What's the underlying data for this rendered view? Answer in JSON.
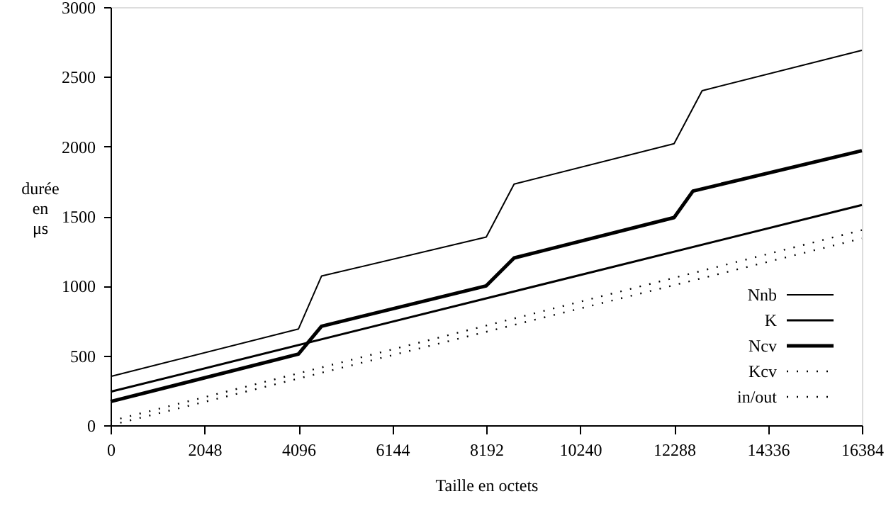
{
  "chart_data": {
    "type": "line",
    "xlabel": "Taille en octets",
    "ylabel": "durée\nen\nμs",
    "xlim": [
      0,
      16384
    ],
    "xticks": [
      0,
      2048,
      4096,
      6144,
      8192,
      10240,
      12288,
      14336,
      16384
    ],
    "ylim": [
      0,
      3000
    ],
    "yticks": [
      0,
      500,
      1000,
      1500,
      2000,
      2500,
      3000
    ],
    "grid": false,
    "legend": "bottom right",
    "marker": "none",
    "series": [
      {
        "name": "Nnb",
        "color": "#000000",
        "line_style": "solid",
        "x": [
          0,
          4096,
          4600,
          8192,
          8800,
          12288,
          12900,
          16384
        ],
        "values": [
          350,
          690,
          1070,
          1350,
          1730,
          2020,
          2400,
          2690
        ]
      },
      {
        "name": "K",
        "color": "#000000",
        "line_style": "solid",
        "x": [
          0,
          16384
        ],
        "values": [
          240,
          1580
        ]
      },
      {
        "name": "Ncv",
        "color": "#000000",
        "line_style": "solid",
        "x": [
          0,
          4096,
          4600,
          8192,
          8800,
          12288,
          12700,
          16384
        ],
        "values": [
          170,
          510,
          710,
          1000,
          1200,
          1490,
          1680,
          1970
        ]
      },
      {
        "name": "Kcv",
        "color": "#000000",
        "line_style": "dotted",
        "x": [
          0,
          16384
        ],
        "values": [
          30,
          1400
        ]
      },
      {
        "name": "in/out",
        "color": "#000000",
        "line_style": "dotted",
        "x": [
          0,
          16384
        ],
        "values": [
          0,
          1340
        ]
      }
    ]
  }
}
